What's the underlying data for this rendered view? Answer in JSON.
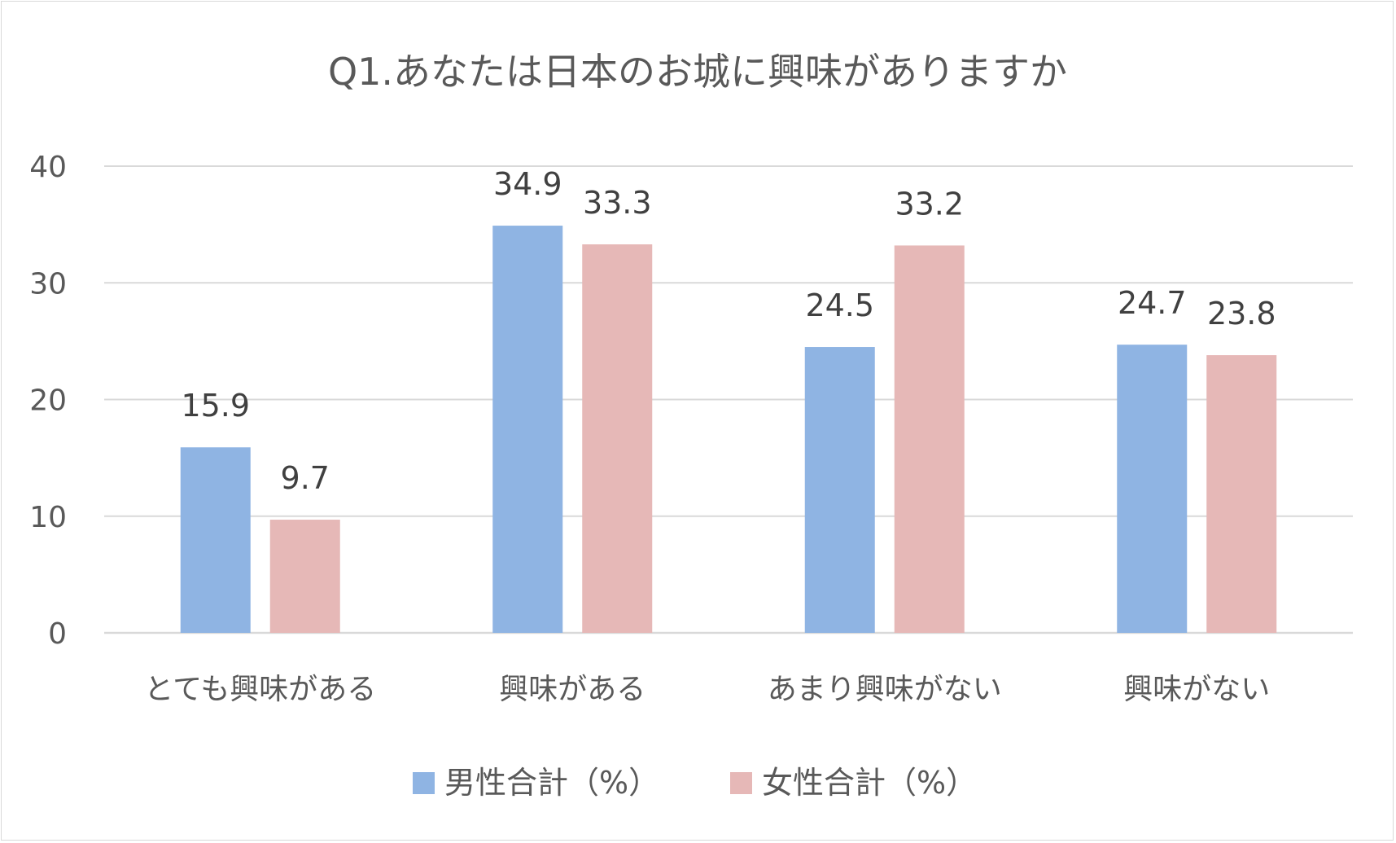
{
  "chart_data": {
    "type": "bar",
    "title": "Q1.あなたは日本のお城に興味がありますか",
    "categories": [
      "とても興味がある",
      "興味がある",
      "あまり興味がない",
      "興味がない"
    ],
    "series": [
      {
        "name": "男性合計（%）",
        "color": "#8fb4e3",
        "values": [
          15.9,
          34.9,
          24.5,
          24.7
        ]
      },
      {
        "name": "女性合計（%）",
        "color": "#e6b8b7",
        "values": [
          9.7,
          33.3,
          33.2,
          23.8
        ]
      }
    ],
    "ylim": [
      0,
      40
    ],
    "yticks": [
      0,
      10,
      20,
      30,
      40
    ],
    "grid": true,
    "legend": "bottom",
    "gridColor": "#d9d9d9"
  }
}
